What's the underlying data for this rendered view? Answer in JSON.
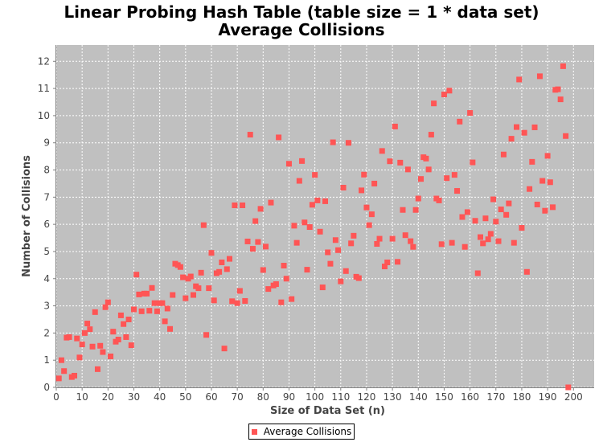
{
  "chart_data": {
    "type": "scatter",
    "title": "Linear Probing Hash Table (table size = 1 * data set)",
    "subtitle": "Average Collisions",
    "xlabel": "Size of Data Set (n)",
    "ylabel": "Number of Collisions",
    "xlim": [
      0,
      208
    ],
    "ylim": [
      0,
      12.6
    ],
    "xticks": [
      0,
      10,
      20,
      30,
      40,
      50,
      60,
      70,
      80,
      90,
      100,
      110,
      120,
      130,
      140,
      150,
      160,
      170,
      180,
      190,
      200
    ],
    "yticks": [
      0,
      1,
      2,
      3,
      4,
      5,
      6,
      7,
      8,
      9,
      10,
      11,
      12
    ],
    "grid": true,
    "legend_position": "bottom",
    "colors": {
      "series": "#ff5555",
      "plot_background": "#c0c0c0",
      "grid": "#ffffff"
    },
    "series": [
      {
        "name": "Average Collisions",
        "x": [
          1,
          2,
          3,
          4,
          5,
          6,
          7,
          8,
          9,
          10,
          11,
          12,
          13,
          14,
          15,
          16,
          17,
          18,
          19,
          20,
          21,
          22,
          23,
          24,
          25,
          26,
          27,
          28,
          29,
          30,
          31,
          32,
          33,
          34,
          35,
          36,
          37,
          38,
          39,
          40,
          41,
          42,
          43,
          44,
          45,
          46,
          47,
          48,
          49,
          50,
          51,
          52,
          53,
          54,
          55,
          56,
          57,
          58,
          59,
          60,
          61,
          62,
          63,
          64,
          65,
          66,
          67,
          68,
          69,
          70,
          71,
          72,
          73,
          74,
          75,
          76,
          77,
          78,
          79,
          80,
          81,
          82,
          83,
          84,
          85,
          86,
          87,
          88,
          89,
          90,
          91,
          92,
          93,
          94,
          95,
          96,
          97,
          98,
          99,
          100,
          101,
          102,
          103,
          104,
          105,
          106,
          107,
          108,
          109,
          110,
          111,
          112,
          113,
          114,
          115,
          116,
          117,
          118,
          119,
          120,
          121,
          122,
          123,
          124,
          125,
          126,
          127,
          128,
          129,
          130,
          131,
          132,
          133,
          134,
          135,
          136,
          137,
          138,
          139,
          140,
          141,
          142,
          143,
          144,
          145,
          146,
          147,
          148,
          149,
          150,
          151,
          152,
          153,
          154,
          155,
          156,
          157,
          158,
          159,
          160,
          161,
          162,
          163,
          164,
          165,
          166,
          167,
          168,
          169,
          170,
          171,
          172,
          173,
          174,
          175,
          176,
          177,
          178,
          179,
          180,
          181,
          182,
          183,
          184,
          185,
          186,
          187,
          188,
          189,
          190,
          191,
          192,
          193,
          194,
          195,
          196,
          197,
          198
        ],
        "y": [
          0.33,
          1.0,
          0.6,
          1.83,
          1.85,
          0.38,
          0.43,
          1.8,
          1.1,
          1.58,
          2.0,
          2.35,
          2.14,
          1.5,
          2.77,
          0.67,
          1.53,
          1.3,
          2.95,
          3.13,
          1.14,
          2.05,
          1.68,
          1.76,
          2.65,
          2.33,
          1.85,
          2.5,
          1.55,
          2.87,
          4.15,
          3.42,
          2.8,
          3.45,
          3.45,
          2.82,
          3.66,
          3.1,
          2.8,
          3.1,
          3.1,
          2.43,
          2.9,
          2.15,
          3.4,
          4.55,
          4.5,
          4.43,
          4.05,
          3.28,
          4.0,
          4.08,
          3.4,
          3.72,
          3.65,
          4.22,
          5.97,
          1.93,
          3.65,
          4.95,
          3.2,
          4.2,
          4.25,
          4.6,
          1.43,
          4.35,
          4.73,
          3.17,
          6.7,
          3.1,
          3.55,
          6.7,
          3.18,
          5.37,
          9.3,
          5.1,
          6.12,
          5.35,
          6.57,
          4.32,
          5.18,
          3.62,
          6.8,
          3.75,
          3.8,
          9.2,
          3.13,
          4.48,
          4.0,
          8.23,
          3.25,
          5.95,
          5.32,
          7.6,
          8.33,
          6.07,
          4.33,
          5.9,
          6.72,
          7.82,
          6.88,
          5.73,
          3.68,
          6.85,
          4.97,
          4.55,
          9.02,
          5.42,
          5.05,
          3.9,
          7.35,
          4.28,
          9.0,
          5.3,
          5.58,
          4.07,
          4.02,
          7.25,
          7.83,
          6.62,
          5.97,
          6.37,
          7.5,
          5.28,
          5.47,
          8.7,
          4.45,
          4.6,
          8.32,
          5.47,
          9.6,
          4.62,
          8.27,
          6.53,
          5.6,
          8.02,
          5.38,
          5.17,
          6.53,
          6.95,
          7.67,
          8.47,
          8.42,
          8.02,
          9.3,
          10.45,
          6.95,
          6.88,
          5.27,
          10.78,
          7.7,
          10.92,
          5.32,
          7.82,
          7.23,
          9.78,
          6.27,
          5.17,
          6.45,
          10.1,
          8.28,
          6.13,
          4.2,
          5.53,
          5.3,
          6.22,
          5.45,
          5.65,
          6.92,
          6.1,
          5.38,
          6.55,
          8.57,
          6.35,
          6.77,
          9.15,
          5.32,
          9.58,
          11.33,
          5.87,
          9.37,
          4.25,
          7.3,
          8.3,
          9.57,
          6.73,
          11.45,
          7.6,
          6.5,
          8.52,
          7.55,
          6.63,
          10.95,
          10.97,
          10.6,
          11.82,
          9.25,
          0.0
        ]
      }
    ]
  }
}
